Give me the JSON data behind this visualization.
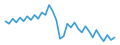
{
  "x": [
    0,
    1,
    2,
    3,
    4,
    5,
    6,
    7,
    8,
    9,
    10,
    11,
    12,
    13,
    14,
    15,
    16,
    17,
    18,
    19,
    20,
    21,
    22,
    23,
    24,
    25,
    26,
    27,
    28,
    29,
    30
  ],
  "y": [
    0.1,
    0.0,
    0.2,
    0.05,
    0.25,
    0.1,
    0.3,
    0.15,
    0.35,
    0.2,
    0.45,
    0.35,
    0.75,
    0.5,
    0.15,
    -0.6,
    -0.5,
    0.0,
    -0.15,
    0.05,
    -0.2,
    -0.35,
    -0.1,
    -0.3,
    -0.55,
    -0.25,
    -0.5,
    -0.7,
    -0.45,
    -0.65,
    -0.55
  ],
  "line_color": "#3a9fd9",
  "linewidth": 1.2,
  "background_color": "#ffffff",
  "ylim": [
    -0.85,
    0.95
  ]
}
